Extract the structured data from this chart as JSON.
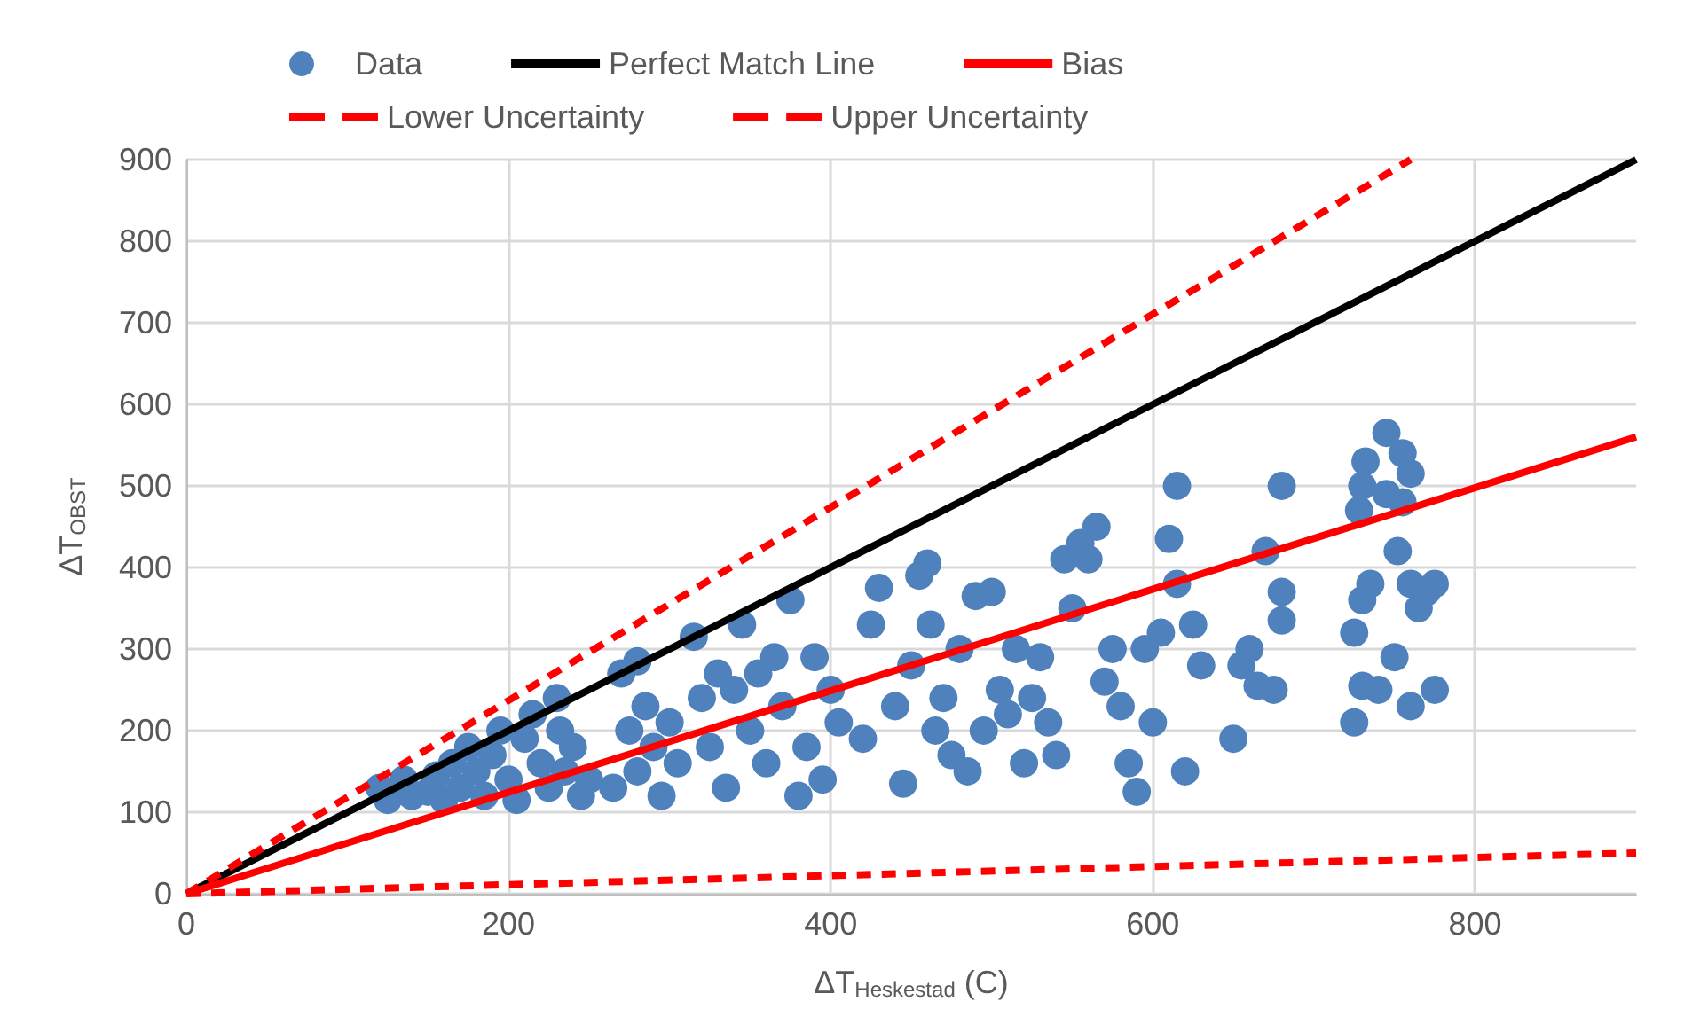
{
  "chart_data": {
    "type": "scatter",
    "xlabel": "ΔT$_{Heskestad}$ (C)",
    "ylabel": "ΔT$_{OBST}$",
    "xlim": [
      0,
      900
    ],
    "ylim": [
      0,
      900
    ],
    "xticks": [
      0,
      200,
      400,
      600,
      800
    ],
    "yticks": [
      0,
      100,
      200,
      300,
      400,
      500,
      600,
      700,
      800,
      900
    ],
    "grid": true,
    "legend": "top",
    "series": [
      {
        "name": "Data",
        "marker": "circle",
        "color": "#4f81bd",
        "x": [
          120,
          125,
          135,
          140,
          150,
          155,
          160,
          165,
          170,
          175,
          180,
          185,
          190,
          195,
          200,
          205,
          210,
          215,
          220,
          225,
          230,
          232,
          235,
          240,
          245,
          250,
          265,
          270,
          275,
          280,
          280,
          285,
          290,
          295,
          300,
          305,
          315,
          320,
          325,
          330,
          335,
          340,
          345,
          350,
          355,
          360,
          365,
          370,
          375,
          380,
          385,
          390,
          395,
          400,
          405,
          420,
          425,
          430,
          440,
          445,
          450,
          455,
          460,
          462,
          465,
          470,
          475,
          480,
          485,
          490,
          495,
          500,
          505,
          510,
          515,
          520,
          525,
          530,
          535,
          540,
          545,
          550,
          555,
          560,
          565,
          570,
          575,
          580,
          585,
          590,
          595,
          600,
          605,
          610,
          615,
          615,
          620,
          625,
          630,
          650,
          655,
          660,
          665,
          670,
          675,
          680,
          680,
          680,
          725,
          725,
          728,
          730,
          730,
          732,
          735,
          740,
          745,
          745,
          750,
          752,
          755,
          755,
          760,
          760,
          765,
          770,
          775,
          775,
          760,
          730
        ],
        "values": [
          130,
          115,
          140,
          120,
          125,
          145,
          115,
          160,
          130,
          180,
          150,
          120,
          170,
          200,
          140,
          115,
          190,
          220,
          160,
          130,
          240,
          200,
          150,
          180,
          120,
          140,
          130,
          270,
          200,
          285,
          150,
          230,
          180,
          120,
          210,
          160,
          315,
          240,
          180,
          270,
          130,
          250,
          330,
          200,
          270,
          160,
          290,
          230,
          360,
          120,
          180,
          290,
          140,
          250,
          210,
          190,
          330,
          375,
          230,
          135,
          280,
          390,
          405,
          330,
          200,
          240,
          170,
          300,
          150,
          365,
          200,
          370,
          250,
          220,
          300,
          160,
          240,
          290,
          210,
          170,
          410,
          350,
          430,
          410,
          450,
          260,
          300,
          230,
          160,
          125,
          300,
          210,
          320,
          435,
          380,
          500,
          150,
          330,
          280,
          190,
          280,
          300,
          255,
          420,
          250,
          500,
          370,
          335,
          210,
          320,
          470,
          360,
          500,
          530,
          380,
          250,
          490,
          565,
          290,
          420,
          540,
          480,
          380,
          230,
          350,
          370,
          250,
          380,
          515,
          255
        ]
      },
      {
        "name": "Perfect Match Line",
        "type": "line",
        "marker": "none",
        "color": "#000000",
        "line_style": "solid",
        "x": [
          0,
          900
        ],
        "values": [
          0,
          900
        ]
      },
      {
        "name": "Bias",
        "type": "line",
        "marker": "none",
        "color": "#ff0000",
        "line_style": "solid",
        "x": [
          0,
          900
        ],
        "values": [
          0,
          560
        ]
      },
      {
        "name": "Lower Uncertainty",
        "type": "line",
        "marker": "none",
        "color": "#ff0000",
        "line_style": "dashed",
        "x": [
          0,
          900
        ],
        "values": [
          0,
          50
        ]
      },
      {
        "name": "Upper Uncertainty",
        "type": "line",
        "marker": "none",
        "color": "#ff0000",
        "line_style": "dashed",
        "x": [
          0,
          760
        ],
        "values": [
          0,
          900
        ]
      }
    ]
  }
}
